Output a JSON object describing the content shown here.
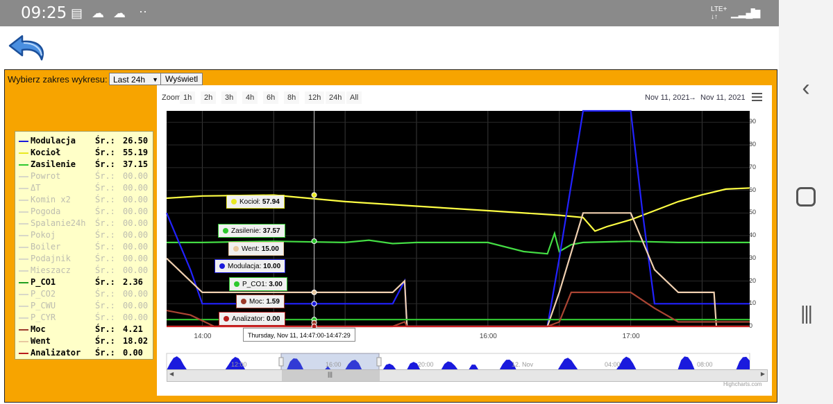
{
  "status": {
    "time": "09:25",
    "network": "LTE+",
    "network_sub": "↓↑"
  },
  "controls": {
    "range_label": "Wybierz zakres wykresu:",
    "range_value": "Last 24h",
    "show_button": "Wyświetl"
  },
  "legend": [
    {
      "name": "Modulacja",
      "avg_label": "Śr.:",
      "avg": "26.50",
      "color": "#1a1adc",
      "active": true
    },
    {
      "name": "Kocioł",
      "avg_label": "Śr.:",
      "avg": "55.19",
      "color": "#e8e820",
      "active": true
    },
    {
      "name": "Zasilenie",
      "avg_label": "Śr.:",
      "avg": "37.15",
      "color": "#2ec82e",
      "active": true
    },
    {
      "name": "Powrot",
      "avg_label": "Śr.:",
      "avg": "00.00",
      "color": "#d8d8c8",
      "active": false
    },
    {
      "name": "ΔT",
      "avg_label": "Śr.:",
      "avg": "00.00",
      "color": "#d8d8c8",
      "active": false
    },
    {
      "name": "Komin x2",
      "avg_label": "Śr.:",
      "avg": "00.00",
      "color": "#d8d8c8",
      "active": false
    },
    {
      "name": "Pogoda",
      "avg_label": "Śr.:",
      "avg": "00.00",
      "color": "#d8d8c8",
      "active": false
    },
    {
      "name": "Spalanie24h",
      "avg_label": "Śr.:",
      "avg": "00.00",
      "color": "#d8d8c8",
      "active": false
    },
    {
      "name": "Pokoj",
      "avg_label": "Śr.:",
      "avg": "00.00",
      "color": "#d8d8c8",
      "active": false
    },
    {
      "name": "Boiler",
      "avg_label": "Śr.:",
      "avg": "00.00",
      "color": "#d8d8c8",
      "active": false
    },
    {
      "name": "Podajnik",
      "avg_label": "Śr.:",
      "avg": "00.00",
      "color": "#d8d8c8",
      "active": false
    },
    {
      "name": "Mieszacz",
      "avg_label": "Śr.:",
      "avg": "00.00",
      "color": "#d8d8c8",
      "active": false
    },
    {
      "name": "P_CO1",
      "avg_label": "Śr.:",
      "avg": "2.36",
      "color": "#1f9e1f",
      "active": true
    },
    {
      "name": "P_CO2",
      "avg_label": "Śr.:",
      "avg": "00.00",
      "color": "#d8d8c8",
      "active": false
    },
    {
      "name": "P_CWU",
      "avg_label": "Śr.:",
      "avg": "00.00",
      "color": "#d8d8c8",
      "active": false
    },
    {
      "name": "P_CYR",
      "avg_label": "Śr.:",
      "avg": "00.00",
      "color": "#d8d8c8",
      "active": false
    },
    {
      "name": "Moc",
      "avg_label": "Śr.:",
      "avg": "4.21",
      "color": "#9b3a2a",
      "active": true
    },
    {
      "name": "Went",
      "avg_label": "Śr.:",
      "avg": "18.02",
      "color": "#e8c8a0",
      "active": true
    },
    {
      "name": "Analizator",
      "avg_label": "Śr.:",
      "avg": "0.00",
      "color": "#b81c1c",
      "active": true
    }
  ],
  "zoom": {
    "label": "Zoom",
    "buttons": [
      "1h",
      "2h",
      "3h",
      "4h",
      "6h",
      "8h",
      "12h",
      "24h",
      "All"
    ]
  },
  "date_range": {
    "from": "Nov 11, 2021",
    "arrow": "→",
    "to": "Nov 11, 2021"
  },
  "tooltip": {
    "time": "Thursday, Nov 11, 14:47:00-14:47:29",
    "items": [
      {
        "label": "Kocioł",
        "value": "57.94",
        "color": "#e8e820"
      },
      {
        "label": "Zasilenie",
        "value": "37.57",
        "color": "#2ec82e"
      },
      {
        "label": "Went",
        "value": "15.00",
        "color": "#e8c8a0"
      },
      {
        "label": "Modulacja",
        "value": "10.00",
        "color": "#1a1adc"
      },
      {
        "label": "P_CO1",
        "value": "3.00",
        "color": "#2ec82e"
      },
      {
        "label": "Moc",
        "value": "1.59",
        "color": "#9b3a2a"
      },
      {
        "label": "Analizator",
        "value": "0.00",
        "color": "#b81c1c"
      }
    ]
  },
  "navigator": {
    "labels": [
      "12:00",
      "16:00",
      "20:00",
      "12. Nov",
      "04:00",
      "08:00"
    ]
  },
  "credits": "Highcharts.com",
  "chart_data": {
    "type": "line",
    "x_unit": "time (Nov 11, 2021)",
    "xlim": [
      "13:45",
      "17:50"
    ],
    "ylim": [
      0,
      95
    ],
    "yticks": [
      0,
      10,
      20,
      30,
      40,
      50,
      60,
      70,
      80,
      90
    ],
    "xticks": [
      "14:00",
      "16:00",
      "17:00"
    ],
    "grid": true,
    "series": [
      {
        "name": "Kocioł",
        "color": "#ffff44",
        "x": [
          "13:45",
          "14:00",
          "14:30",
          "15:00",
          "15:30",
          "16:00",
          "16:30",
          "16:40",
          "16:45",
          "16:50",
          "17:00",
          "17:10",
          "17:20",
          "17:30",
          "17:40",
          "17:50"
        ],
        "y": [
          56.5,
          57.5,
          57.9,
          55,
          53,
          51,
          49,
          48,
          42,
          44,
          47,
          51,
          55,
          58,
          60.5,
          61
        ]
      },
      {
        "name": "Zasilenie",
        "color": "#44dd44",
        "x": [
          "13:45",
          "14:00",
          "14:30",
          "15:00",
          "15:10",
          "15:20",
          "15:30",
          "16:00",
          "16:15",
          "16:25",
          "16:28",
          "16:30",
          "16:35",
          "16:40",
          "17:00",
          "17:20",
          "17:50"
        ],
        "y": [
          37,
          37,
          37.5,
          37,
          38,
          36.5,
          37,
          37,
          33,
          32,
          41,
          33,
          36,
          37,
          37.5,
          37,
          37
        ]
      },
      {
        "name": "Modulacja",
        "color": "#2222ff",
        "x": [
          "13:45",
          "13:55",
          "14:00",
          "14:50",
          "14:55",
          "15:20",
          "15:25",
          "15:26",
          "16:25",
          "16:30",
          "16:40",
          "17:00",
          "17:05",
          "17:10",
          "17:20",
          "17:50"
        ],
        "y": [
          50,
          25,
          10,
          10,
          10,
          10,
          20,
          0,
          0,
          30,
          95,
          95,
          50,
          10,
          10,
          10
        ]
      },
      {
        "name": "Went",
        "color": "#f0d0b0",
        "x": [
          "13:45",
          "14:00",
          "14:47",
          "15:20",
          "15:25",
          "15:26",
          "16:25",
          "16:30",
          "16:40",
          "17:00",
          "17:10",
          "17:20",
          "17:35",
          "17:36",
          "17:50"
        ],
        "y": [
          30,
          15,
          15,
          15,
          20,
          0,
          0,
          15,
          50,
          50,
          25,
          15,
          15,
          0,
          0
        ]
      },
      {
        "name": "P_CO1",
        "color": "#33cc33",
        "x": [
          "13:45",
          "17:50"
        ],
        "y": [
          3,
          3
        ]
      },
      {
        "name": "Moc",
        "color": "#aa4433",
        "x": [
          "13:45",
          "13:55",
          "14:05",
          "15:20",
          "15:25",
          "15:26",
          "16:25",
          "16:30",
          "16:35",
          "17:00",
          "17:10",
          "17:20",
          "17:50"
        ],
        "y": [
          7,
          5,
          0,
          0,
          2,
          0,
          0,
          2,
          15,
          15,
          8,
          2,
          2
        ]
      },
      {
        "name": "Analizator",
        "color": "#cc2222",
        "x": [
          "13:45",
          "17:50"
        ],
        "y": [
          0,
          0
        ]
      }
    ]
  }
}
